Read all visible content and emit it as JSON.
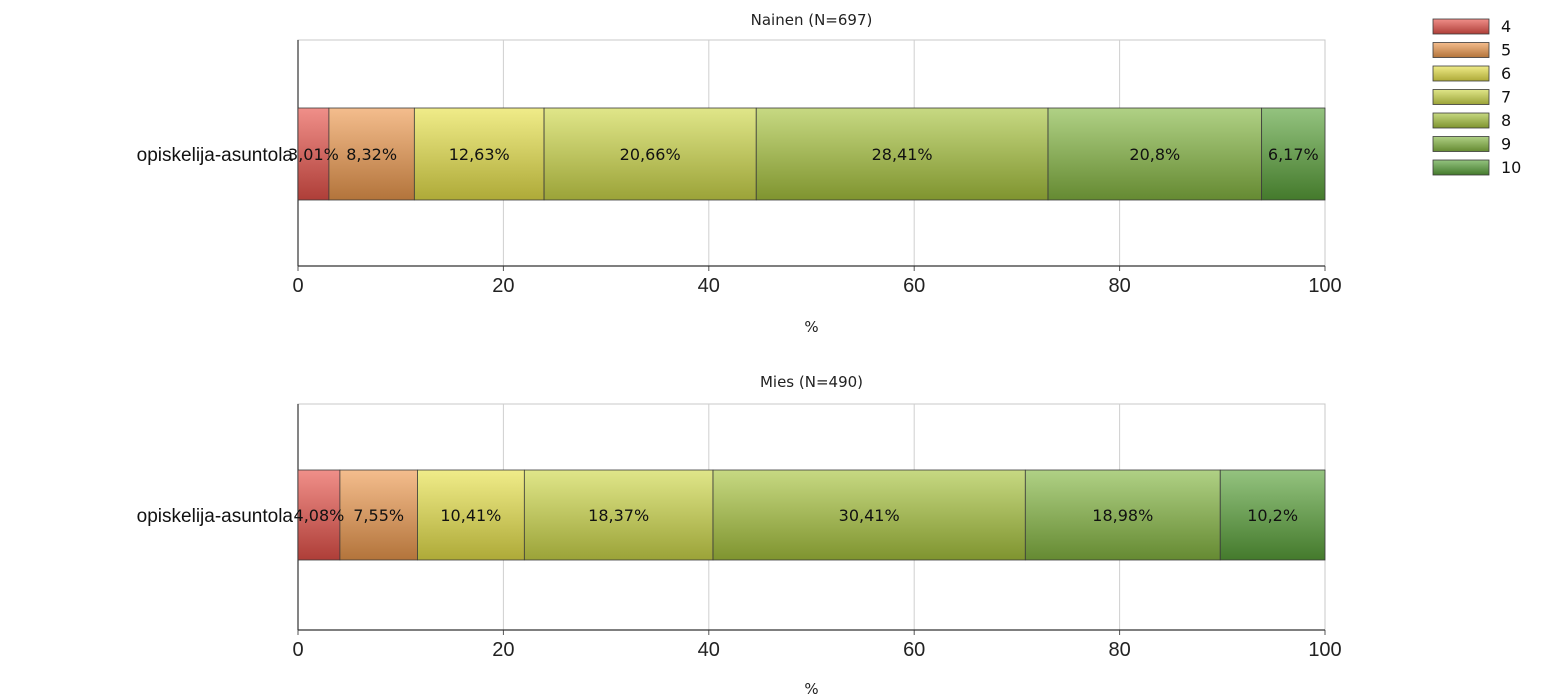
{
  "chart_data": [
    {
      "type": "bar",
      "orientation": "horizontal",
      "stacked": "percent",
      "title": "Nainen (N=697)",
      "xlabel": "%",
      "xlim": [
        0,
        100
      ],
      "xticks": [
        "0",
        "20",
        "40",
        "60",
        "80",
        "100"
      ],
      "grid": true,
      "categories": [
        "opiskelija-asuntola"
      ],
      "series": [
        {
          "name": "4",
          "values": [
            3.01
          ],
          "label": "3,01%"
        },
        {
          "name": "5",
          "values": [
            8.32
          ],
          "label": "8,32%"
        },
        {
          "name": "6",
          "values": [
            12.63
          ],
          "label": "12,63%"
        },
        {
          "name": "7",
          "values": [
            20.66
          ],
          "label": "20,66%"
        },
        {
          "name": "8",
          "values": [
            28.41
          ],
          "label": "28,41%"
        },
        {
          "name": "9",
          "values": [
            20.8
          ],
          "label": "20,8%"
        },
        {
          "name": "10",
          "values": [
            6.17
          ],
          "label": "6,17%"
        }
      ]
    },
    {
      "type": "bar",
      "orientation": "horizontal",
      "stacked": "percent",
      "title": "Mies (N=490)",
      "xlabel": "%",
      "xlim": [
        0,
        100
      ],
      "xticks": [
        "0",
        "20",
        "40",
        "60",
        "80",
        "100"
      ],
      "grid": true,
      "categories": [
        "opiskelija-asuntola"
      ],
      "series": [
        {
          "name": "4",
          "values": [
            4.08
          ],
          "label": "4,08%"
        },
        {
          "name": "5",
          "values": [
            7.55
          ],
          "label": "7,55%"
        },
        {
          "name": "6",
          "values": [
            10.41
          ],
          "label": "10,41%"
        },
        {
          "name": "7",
          "values": [
            18.37
          ],
          "label": "18,37%"
        },
        {
          "name": "8",
          "values": [
            30.41
          ],
          "label": "30,41%"
        },
        {
          "name": "9",
          "values": [
            18.98
          ],
          "label": "18,98%"
        },
        {
          "name": "10",
          "values": [
            10.2
          ],
          "label": "10,2%"
        }
      ]
    }
  ],
  "legend": {
    "placement": "top-right",
    "items": [
      "4",
      "5",
      "6",
      "7",
      "8",
      "9",
      "10"
    ]
  },
  "colors": {
    "4": "#e8524a",
    "5": "#ee9a4f",
    "6": "#e8e24a",
    "7": "#cfd94a",
    "8": "#a9c53e",
    "9": "#86b843",
    "10": "#5aa33a",
    "grid": "#cfcfcf",
    "axis": "#555555"
  }
}
